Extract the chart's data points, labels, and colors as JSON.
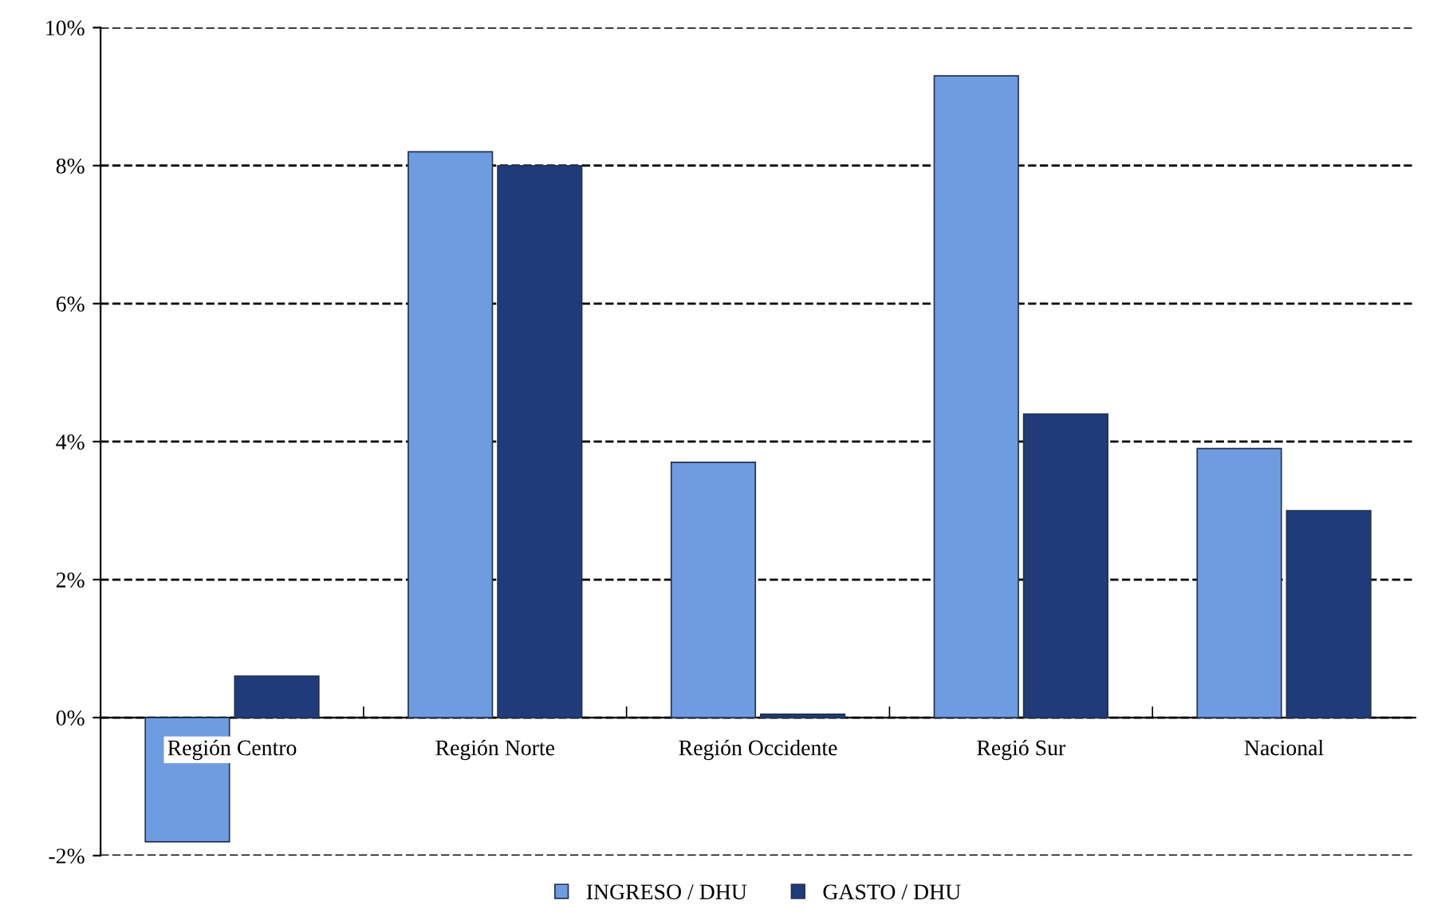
{
  "chart_data": {
    "type": "bar",
    "categories": [
      "Región Centro",
      "Región Norte",
      "Región Occidente",
      "Regió Sur",
      "Nacional"
    ],
    "series": [
      {
        "name": "INGRESO / DHU",
        "color": "#6f9be0",
        "values": [
          -1.8,
          8.2,
          3.7,
          9.3,
          3.9
        ]
      },
      {
        "name": "GASTO / DHU",
        "color": "#1f3b7a",
        "values": [
          0.6,
          8.0,
          0.05,
          4.4,
          3.0
        ]
      }
    ],
    "ylim": [
      -2,
      10
    ],
    "yticks": [
      {
        "value": -2,
        "label": "-2%"
      },
      {
        "value": 0,
        "label": "0%"
      },
      {
        "value": 2,
        "label": "2%"
      },
      {
        "value": 4,
        "label": "4%"
      },
      {
        "value": 6,
        "label": "6%"
      },
      {
        "value": 8,
        "label": "8%"
      },
      {
        "value": 10,
        "label": "10%"
      }
    ],
    "grid": "y",
    "line_style": "dashed",
    "legend": "bottom"
  }
}
